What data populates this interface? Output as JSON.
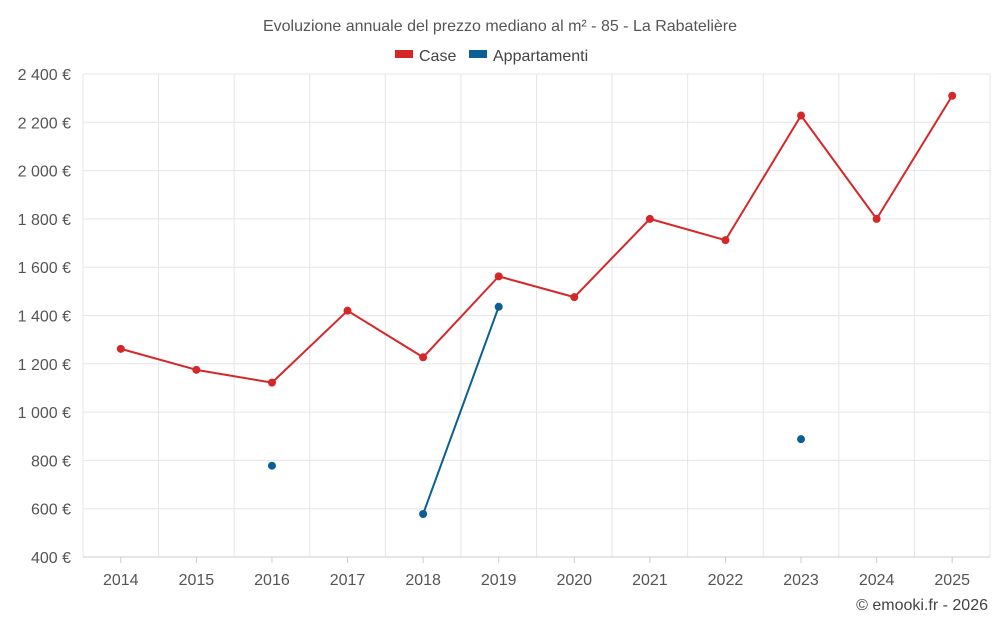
{
  "chart_data": {
    "type": "line",
    "title": "Evoluzione annuale del prezzo mediano al m² - 85 - La Rabatelière",
    "categories": [
      "2014",
      "2015",
      "2016",
      "2017",
      "2018",
      "2019",
      "2020",
      "2021",
      "2022",
      "2023",
      "2024",
      "2025"
    ],
    "series": [
      {
        "name": "Case",
        "color": "#d62728",
        "values": [
          1262,
          1175,
          1122,
          1420,
          1227,
          1562,
          1476,
          1800,
          1712,
          2228,
          1800,
          2310
        ]
      },
      {
        "name": "Appartamenti",
        "color": "#0b5f95",
        "values": [
          null,
          null,
          778,
          null,
          578,
          1436,
          null,
          null,
          null,
          888,
          null,
          null
        ]
      }
    ],
    "ylim": [
      400,
      2400
    ],
    "yticks": [
      400,
      600,
      800,
      1000,
      1200,
      1400,
      1600,
      1800,
      2000,
      2200,
      2400
    ],
    "ytick_labels": [
      "400 €",
      "600 €",
      "800 €",
      "1 000 €",
      "1 200 €",
      "1 400 €",
      "1 600 €",
      "1 800 €",
      "2 000 €",
      "2 200 €",
      "2 400 €"
    ],
    "xlabel": "",
    "ylabel": "",
    "grid": true,
    "legend_position": "top-center"
  },
  "credit": "© emooki.fr - 2026"
}
